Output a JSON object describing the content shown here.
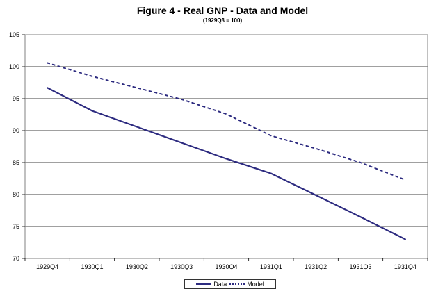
{
  "chart_data": {
    "type": "line",
    "title": "Figure 4 - Real GNP - Data and Model",
    "subtitle": "(1929Q3 = 100)",
    "xlabel": "",
    "ylabel": "",
    "categories": [
      "1929Q4",
      "1930Q1",
      "1930Q2",
      "1930Q3",
      "1930Q4",
      "1931Q1",
      "1931Q2",
      "1931Q3",
      "1931Q4"
    ],
    "ylim": [
      70,
      105
    ],
    "yticks": [
      70,
      75,
      80,
      85,
      90,
      95,
      100,
      105
    ],
    "grid": true,
    "legend_position": "bottom",
    "series": [
      {
        "name": "Data",
        "style": "solid",
        "color": "#2d2b80",
        "values": [
          96.7,
          93.1,
          90.6,
          88.1,
          85.6,
          83.3,
          79.9,
          76.5,
          73.0
        ]
      },
      {
        "name": "Model",
        "style": "dotted",
        "color": "#2d2b80",
        "values": [
          100.6,
          98.5,
          96.7,
          94.9,
          92.6,
          89.2,
          87.2,
          85.0,
          82.3
        ]
      }
    ]
  }
}
